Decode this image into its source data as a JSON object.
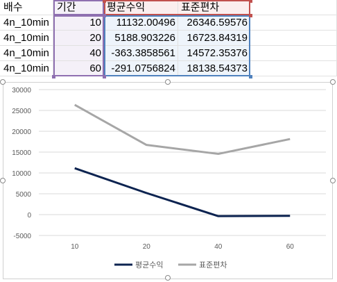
{
  "sheet": {
    "headers": [
      "배수",
      "기간",
      "평균수익",
      "표준편차"
    ],
    "rows": [
      [
        "4n_10min",
        "10",
        "11132.00496",
        "26346.59576"
      ],
      [
        "4n_10min",
        "20",
        "5188.903226",
        "16723.84319"
      ],
      [
        "4n_10min",
        "40",
        "-363.3858561",
        "14572.35376"
      ],
      [
        "4n_10min",
        "60",
        "-291.0756824",
        "18138.54373"
      ]
    ]
  },
  "chart_data": {
    "type": "line",
    "categories": [
      "10",
      "20",
      "40",
      "60"
    ],
    "series": [
      {
        "name": "평균수익",
        "values": [
          11132.00496,
          5188.903226,
          -363.3858561,
          -291.0756824
        ],
        "color": "#0c2350"
      },
      {
        "name": "표준편차",
        "values": [
          26346.59576,
          16723.84319,
          14572.35376,
          18138.54373
        ],
        "color": "#a6a6a6"
      }
    ],
    "y_ticks": [
      "30000",
      "25000",
      "20000",
      "15000",
      "10000",
      "5000",
      "0",
      "-5000"
    ],
    "ylim": [
      -5000,
      30000
    ],
    "grid": true,
    "legend": "bottom"
  }
}
